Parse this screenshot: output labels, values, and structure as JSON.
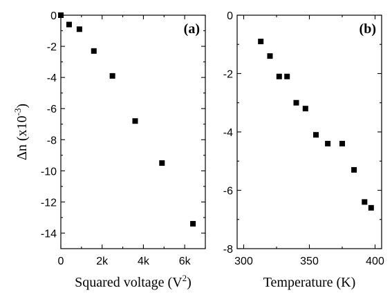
{
  "chart_data": [
    {
      "type": "scatter",
      "panel_label": "(a)",
      "xlabel": "Squared voltage (V",
      "xlabel_sup": "2",
      "xlabel_end": ")",
      "ylabel": "Δn (x10",
      "ylabel_sup": "-3",
      "ylabel_end": ")",
      "xlim": [
        0,
        7000
      ],
      "ylim": [
        -15,
        0
      ],
      "x_ticks": [
        0,
        2000,
        4000,
        6000
      ],
      "x_tick_labels": [
        "0",
        "2k",
        "4k",
        "6k"
      ],
      "y_ticks": [
        0,
        -2,
        -4,
        -6,
        -8,
        -10,
        -12,
        -14
      ],
      "y_tick_labels": [
        "0",
        "-2",
        "-4",
        "-6",
        "-8",
        "-10",
        "-12",
        "-14"
      ],
      "marker": "square",
      "color": "#000000",
      "points": [
        {
          "x": 0,
          "y": 0
        },
        {
          "x": 400,
          "y": -0.6
        },
        {
          "x": 900,
          "y": -0.9
        },
        {
          "x": 1600,
          "y": -2.3
        },
        {
          "x": 2500,
          "y": -3.9
        },
        {
          "x": 3600,
          "y": -6.8
        },
        {
          "x": 4900,
          "y": -9.5
        },
        {
          "x": 6400,
          "y": -13.4
        }
      ]
    },
    {
      "type": "scatter",
      "panel_label": "(b)",
      "xlabel": "Temperature (K)",
      "ylabel": "",
      "xlim": [
        295,
        405
      ],
      "ylim": [
        -8,
        0
      ],
      "x_ticks": [
        300,
        350,
        400
      ],
      "x_tick_labels": [
        "300",
        "350",
        "400"
      ],
      "y_ticks": [
        0,
        -2,
        -4,
        -6,
        -8
      ],
      "y_tick_labels": [
        "0",
        "-2",
        "-4",
        "-6",
        "-8"
      ],
      "marker": "square",
      "color": "#000000",
      "points": [
        {
          "x": 313,
          "y": -0.9
        },
        {
          "x": 320,
          "y": -1.4
        },
        {
          "x": 327,
          "y": -2.1
        },
        {
          "x": 333,
          "y": -2.1
        },
        {
          "x": 340,
          "y": -3.0
        },
        {
          "x": 347,
          "y": -3.2
        },
        {
          "x": 355,
          "y": -4.1
        },
        {
          "x": 364,
          "y": -4.4
        },
        {
          "x": 375,
          "y": -4.4
        },
        {
          "x": 384,
          "y": -5.3
        },
        {
          "x": 392,
          "y": -6.4
        },
        {
          "x": 397,
          "y": -6.6
        }
      ]
    }
  ]
}
